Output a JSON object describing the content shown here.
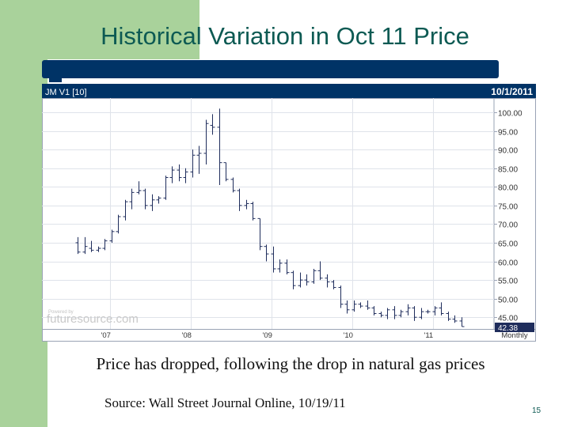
{
  "slide": {
    "title": "Historical Variation in Oct 11 Price",
    "caption": "Price has dropped, following the drop in natural gas prices",
    "source": "Source: Wall Street Journal Online, 10/19/11",
    "slide_number": "15"
  },
  "colors": {
    "green": "#a9d29b",
    "teal_title": "#0d5a53",
    "navy": "#003366",
    "grid": "#dfe3ea",
    "bar": "#1f2d5c"
  },
  "chart_data": {
    "type": "ohlc",
    "symbol": "JM V1 [10]",
    "date": "10/1/2011",
    "interval": "Monthly",
    "watermark_small": "Powered by",
    "watermark_brand": "futuresource.com",
    "last_price": "42.38",
    "x_ticks": [
      "'07",
      "'08",
      "'09",
      "'10",
      "'11"
    ],
    "x_tick_index": [
      3,
      15,
      27,
      39,
      51
    ],
    "y_ticks": [
      "100.00",
      "95.00",
      "90.00",
      "85.00",
      "80.00",
      "75.00",
      "70.00",
      "65.00",
      "60.00",
      "55.00",
      "50.00",
      "45.00"
    ],
    "ylim": [
      42.5,
      101.5
    ],
    "bars": [
      {
        "o": 65.0,
        "h": 66.5,
        "l": 62.0,
        "c": 62.5
      },
      {
        "o": 62.5,
        "h": 66.5,
        "l": 62.0,
        "c": 64.0
      },
      {
        "o": 63.5,
        "h": 65.5,
        "l": 62.5,
        "c": 63.0
      },
      {
        "o": 63.0,
        "h": 64.0,
        "l": 62.5,
        "c": 63.5
      },
      {
        "o": 63.5,
        "h": 66.0,
        "l": 63.0,
        "c": 65.5
      },
      {
        "o": 65.5,
        "h": 68.5,
        "l": 65.0,
        "c": 68.0
      },
      {
        "o": 68.0,
        "h": 72.5,
        "l": 67.5,
        "c": 72.0
      },
      {
        "o": 72.0,
        "h": 76.5,
        "l": 71.0,
        "c": 76.0
      },
      {
        "o": 76.0,
        "h": 79.5,
        "l": 74.0,
        "c": 78.5
      },
      {
        "o": 78.5,
        "h": 81.5,
        "l": 78.0,
        "c": 79.0
      },
      {
        "o": 79.0,
        "h": 79.5,
        "l": 74.0,
        "c": 75.0
      },
      {
        "o": 75.0,
        "h": 78.0,
        "l": 73.5,
        "c": 76.5
      },
      {
        "o": 76.5,
        "h": 77.5,
        "l": 75.5,
        "c": 77.0
      },
      {
        "o": 77.0,
        "h": 83.0,
        "l": 76.5,
        "c": 82.5
      },
      {
        "o": 82.5,
        "h": 85.5,
        "l": 81.0,
        "c": 84.5
      },
      {
        "o": 84.5,
        "h": 86.0,
        "l": 81.5,
        "c": 82.5
      },
      {
        "o": 82.5,
        "h": 85.0,
        "l": 81.0,
        "c": 84.0
      },
      {
        "o": 84.0,
        "h": 90.0,
        "l": 82.5,
        "c": 88.5
      },
      {
        "o": 88.5,
        "h": 91.0,
        "l": 83.5,
        "c": 89.0
      },
      {
        "o": 89.0,
        "h": 98.0,
        "l": 86.0,
        "c": 97.0
      },
      {
        "o": 96.5,
        "h": 99.5,
        "l": 94.0,
        "c": 96.0
      },
      {
        "o": 96.0,
        "h": 101.0,
        "l": 80.5,
        "c": 86.5
      },
      {
        "o": 86.5,
        "h": 86.5,
        "l": 81.5,
        "c": 82.0
      },
      {
        "o": 82.0,
        "h": 82.5,
        "l": 78.5,
        "c": 79.0
      },
      {
        "o": 79.0,
        "h": 79.5,
        "l": 73.5,
        "c": 75.0
      },
      {
        "o": 75.0,
        "h": 76.5,
        "l": 74.0,
        "c": 75.5
      },
      {
        "o": 75.5,
        "h": 76.0,
        "l": 71.0,
        "c": 71.5
      },
      {
        "o": 71.5,
        "h": 71.5,
        "l": 63.0,
        "c": 64.0
      },
      {
        "o": 64.0,
        "h": 64.5,
        "l": 60.0,
        "c": 62.0
      },
      {
        "o": 62.0,
        "h": 64.0,
        "l": 57.0,
        "c": 58.0
      },
      {
        "o": 58.0,
        "h": 60.5,
        "l": 57.0,
        "c": 59.5
      },
      {
        "o": 59.5,
        "h": 60.5,
        "l": 56.5,
        "c": 57.0
      },
      {
        "o": 57.0,
        "h": 57.5,
        "l": 52.5,
        "c": 53.5
      },
      {
        "o": 53.5,
        "h": 57.0,
        "l": 53.0,
        "c": 55.0
      },
      {
        "o": 55.0,
        "h": 56.5,
        "l": 53.5,
        "c": 54.5
      },
      {
        "o": 54.5,
        "h": 58.0,
        "l": 54.0,
        "c": 57.5
      },
      {
        "o": 57.5,
        "h": 60.0,
        "l": 55.0,
        "c": 55.5
      },
      {
        "o": 55.5,
        "h": 56.5,
        "l": 53.0,
        "c": 54.5
      },
      {
        "o": 54.5,
        "h": 55.0,
        "l": 52.5,
        "c": 53.0
      },
      {
        "o": 53.0,
        "h": 53.5,
        "l": 47.5,
        "c": 48.5
      },
      {
        "o": 48.5,
        "h": 49.5,
        "l": 46.0,
        "c": 47.0
      },
      {
        "o": 47.0,
        "h": 49.5,
        "l": 46.5,
        "c": 48.5
      },
      {
        "o": 48.5,
        "h": 49.0,
        "l": 47.5,
        "c": 48.0
      },
      {
        "o": 48.0,
        "h": 49.5,
        "l": 47.0,
        "c": 47.5
      },
      {
        "o": 47.5,
        "h": 48.0,
        "l": 45.5,
        "c": 46.0
      },
      {
        "o": 46.0,
        "h": 46.5,
        "l": 45.0,
        "c": 45.5
      },
      {
        "o": 45.5,
        "h": 47.5,
        "l": 44.5,
        "c": 47.0
      },
      {
        "o": 47.0,
        "h": 48.0,
        "l": 44.5,
        "c": 45.5
      },
      {
        "o": 45.5,
        "h": 47.0,
        "l": 45.0,
        "c": 46.5
      },
      {
        "o": 46.5,
        "h": 48.5,
        "l": 45.5,
        "c": 47.5
      },
      {
        "o": 47.5,
        "h": 48.0,
        "l": 44.0,
        "c": 45.0
      },
      {
        "o": 45.0,
        "h": 47.5,
        "l": 44.5,
        "c": 46.5
      },
      {
        "o": 46.5,
        "h": 47.0,
        "l": 46.0,
        "c": 46.5
      },
      {
        "o": 46.5,
        "h": 48.0,
        "l": 45.5,
        "c": 47.5
      },
      {
        "o": 47.5,
        "h": 49.0,
        "l": 45.5,
        "c": 46.0
      },
      {
        "o": 46.0,
        "h": 46.5,
        "l": 44.0,
        "c": 44.5
      },
      {
        "o": 44.5,
        "h": 45.5,
        "l": 43.5,
        "c": 44.0
      },
      {
        "o": 44.0,
        "h": 45.0,
        "l": 42.5,
        "c": 42.5
      }
    ]
  }
}
